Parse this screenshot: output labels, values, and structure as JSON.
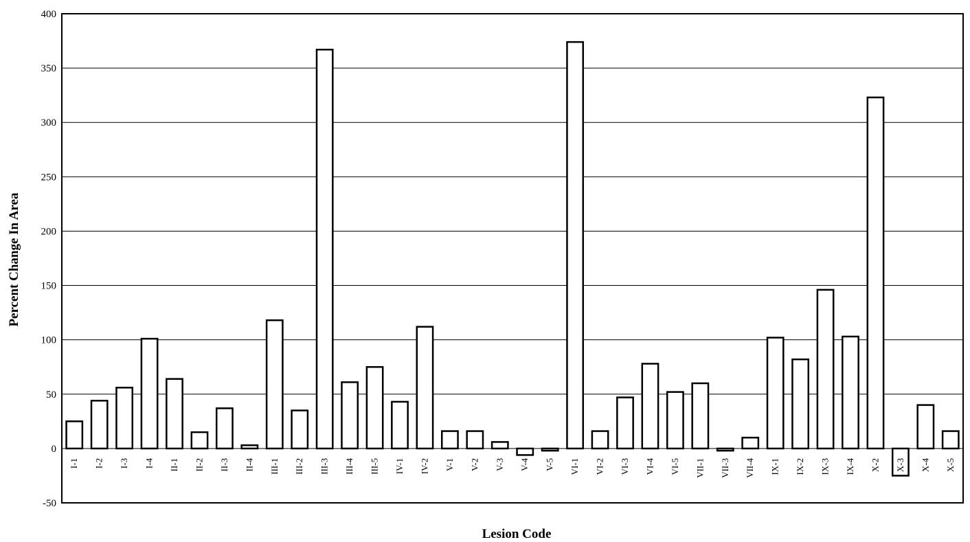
{
  "chart_data": {
    "type": "bar",
    "xlabel": "Lesion Code",
    "ylabel": "Percent Change In Area",
    "ylim": [
      -50,
      400
    ],
    "yticks": [
      -50,
      0,
      50,
      100,
      150,
      200,
      250,
      300,
      350,
      400
    ],
    "grid": true,
    "categories": [
      "I-1",
      "I-2",
      "I-3",
      "I-4",
      "II-1",
      "II-2",
      "II-3",
      "II-4",
      "III-1",
      "III-2",
      "III-3",
      "III-4",
      "III-5",
      "IV-1",
      "IV-2",
      "V-1",
      "V-2",
      "V-3",
      "V-4",
      "V-5",
      "VI-1",
      "VI-2",
      "VI-3",
      "VI-4",
      "VI-5",
      "VII-1",
      "VII-3",
      "VII-4",
      "IX-1",
      "IX-2",
      "IX-3",
      "IX-4",
      "X-2",
      "X-3",
      "X-4",
      "X-5"
    ],
    "values": [
      25,
      44,
      56,
      101,
      64,
      15,
      37,
      3,
      118,
      35,
      367,
      61,
      75,
      43,
      112,
      16,
      16,
      6,
      -6,
      -2,
      374,
      16,
      47,
      78,
      52,
      60,
      -2,
      10,
      102,
      82,
      146,
      103,
      323,
      -25,
      40,
      16
    ]
  }
}
